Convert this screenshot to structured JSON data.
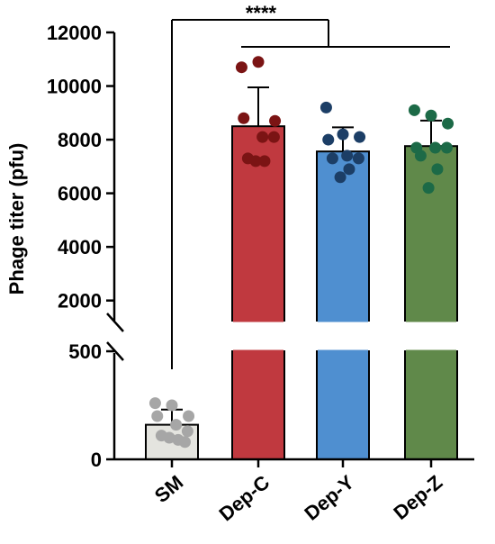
{
  "chart_data": {
    "type": "bar",
    "ylabel": "Phage titer (pfu)",
    "categories": [
      "SM",
      "Dep-C",
      "Dep-Y",
      "Dep-Z"
    ],
    "values": [
      160,
      8500,
      7560,
      7760
    ],
    "errors": [
      70,
      1450,
      900,
      950
    ],
    "colors": [
      "#e4e4df",
      "#c0393f",
      "#4f8fd0",
      "#60894a"
    ],
    "point_colors": [
      "#a6a6a6",
      "#7b1414",
      "#1c3e66",
      "#1c6a47"
    ],
    "points": [
      [
        260,
        250,
        200,
        200,
        160,
        130,
        110,
        90,
        100,
        80
      ],
      [
        10700,
        10900,
        8700,
        8800,
        8100,
        8100,
        7300,
        7200,
        7200
      ],
      [
        9200,
        8200,
        8100,
        8000,
        7400,
        7300,
        7300,
        6900,
        6600
      ],
      [
        9100,
        8900,
        8600,
        7700,
        7700,
        7700,
        7400,
        6900,
        6200
      ]
    ],
    "y_ticks_lower": [
      "0",
      "500"
    ],
    "y_ticks_upper": [
      "2000",
      "4000",
      "6000",
      "8000",
      "10000",
      "12000"
    ],
    "ylim_lower": [
      0,
      500
    ],
    "ylim_upper": [
      1250,
      12000
    ],
    "axis_break": true,
    "significance": {
      "label": "****",
      "comparison": "SM vs Dep-C, Dep-Y, Dep-Z"
    },
    "grid": false,
    "legend": "none"
  }
}
